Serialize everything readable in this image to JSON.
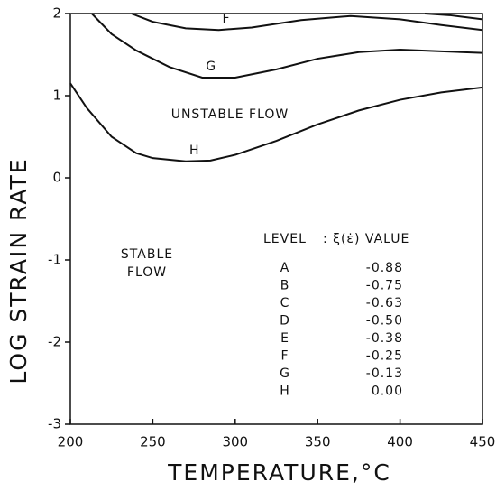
{
  "chart_data": {
    "type": "line",
    "xlabel": "TEMPERATURE,°C",
    "ylabel": "LOG STRAIN RATE",
    "xlim": [
      200,
      450
    ],
    "xticks": [
      200,
      250,
      300,
      350,
      400,
      450
    ],
    "ylim": [
      -3,
      2
    ],
    "yticks": [
      -3,
      -2,
      -1,
      0,
      1,
      2
    ],
    "color": "#111111",
    "series": [
      {
        "name": "F",
        "x": [
          237,
          250,
          270,
          290,
          310,
          340,
          370,
          400,
          425,
          450
        ],
        "values": [
          2.0,
          1.9,
          1.82,
          1.8,
          1.83,
          1.92,
          1.97,
          1.93,
          1.86,
          1.8
        ]
      },
      {
        "x": [
          415,
          430,
          450
        ],
        "values": [
          2.0,
          1.98,
          1.93
        ]
      },
      {
        "name": "G",
        "x": [
          213,
          225,
          240,
          260,
          280,
          300,
          325,
          350,
          375,
          400,
          425,
          450
        ],
        "values": [
          2.0,
          1.75,
          1.55,
          1.35,
          1.22,
          1.22,
          1.32,
          1.45,
          1.53,
          1.56,
          1.54,
          1.52
        ]
      },
      {
        "name": "H",
        "x": [
          200,
          210,
          225,
          240,
          250,
          270,
          285,
          300,
          325,
          350,
          375,
          400,
          425,
          450
        ],
        "values": [
          1.15,
          0.85,
          0.5,
          0.3,
          0.24,
          0.2,
          0.21,
          0.28,
          0.45,
          0.65,
          0.82,
          0.95,
          1.04,
          1.1
        ]
      }
    ],
    "annotations": [
      "UNSTABLE FLOW",
      "STABLE",
      "FLOW"
    ],
    "level_table": {
      "header": [
        "LEVEL",
        ": ξ(ε̇) VALUE"
      ],
      "rows": [
        [
          "A",
          "-0.88"
        ],
        [
          "B",
          "-0.75"
        ],
        [
          "C",
          "-0.63"
        ],
        [
          "D",
          "-0.50"
        ],
        [
          "E",
          "-0.38"
        ],
        [
          "F",
          "-0.25"
        ],
        [
          "G",
          "-0.13"
        ],
        [
          "H",
          "0.00"
        ]
      ]
    }
  }
}
